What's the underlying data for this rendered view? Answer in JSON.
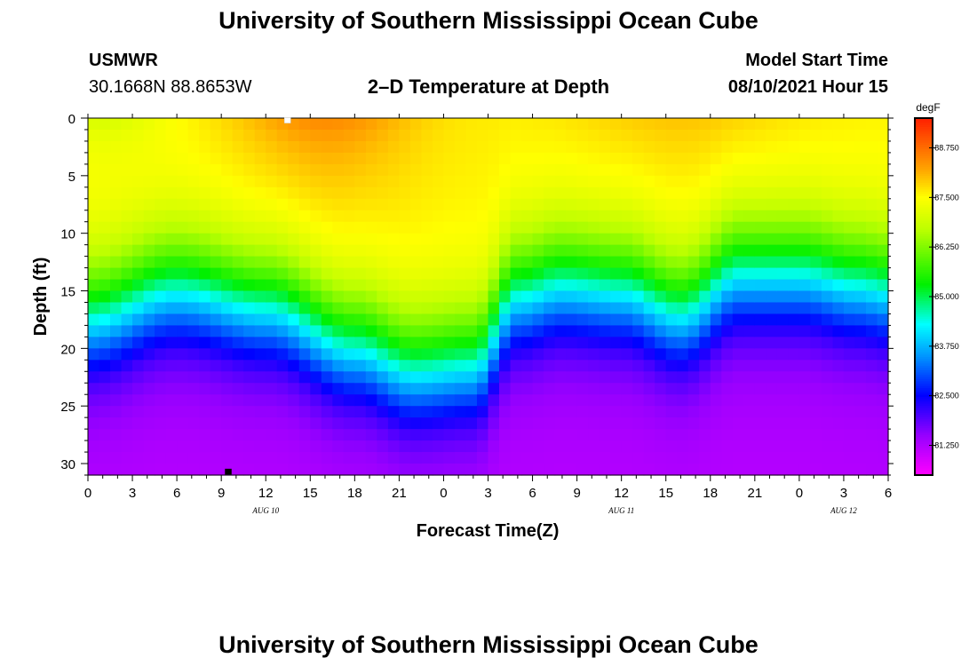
{
  "header": {
    "title": "University of Southern Mississippi Ocean Cube",
    "station": "USMWR",
    "coords": "30.1668N  88.8653W",
    "plot_title": "2–D Temperature at Depth",
    "model_label": "Model Start Time",
    "model_time": "08/10/2021 Hour 15"
  },
  "footer": {
    "title": "University of Southern Mississippi Ocean Cube"
  },
  "colors": {
    "magenta": "#ff00ff",
    "purple": "#8800ff",
    "blue": "#0000ff",
    "cyan": "#00ffff",
    "green": "#00ee00",
    "yellow": "#ffff00",
    "orange": "#ffaa00",
    "red": "#ff2200"
  },
  "chart_data": {
    "type": "heatmap",
    "title": "2–D Temperature at Depth",
    "xlabel": "Forecast Time(Z)",
    "ylabel": "Depth (ft)",
    "x_range_hours": [
      0,
      54
    ],
    "x_ticks": [
      "0",
      "3",
      "6",
      "9",
      "12",
      "15",
      "18",
      "21",
      "0",
      "3",
      "6",
      "9",
      "12",
      "15",
      "18",
      "21",
      "0",
      "3",
      "6"
    ],
    "date_labels": [
      {
        "hour": 12,
        "text": "AUG  10"
      },
      {
        "hour": 36,
        "text": "AUG  11"
      },
      {
        "hour": 51,
        "text": "AUG  12"
      }
    ],
    "y_range_ft": [
      0,
      31
    ],
    "y_ticks": [
      "0",
      "5",
      "10",
      "15",
      "20",
      "25",
      "30"
    ],
    "colorbar": {
      "unit": "degF",
      "range": [
        80.5,
        89.5
      ],
      "labels": [
        "88.750",
        "87.500",
        "86.250",
        "85.000",
        "83.750",
        "82.500",
        "81.250"
      ]
    },
    "markers": [
      {
        "hour": 13.5,
        "depth_ft": 0.2,
        "color": "#ffffff"
      },
      {
        "hour": 9.5,
        "depth_ft": 30.7,
        "color": "#000000"
      }
    ],
    "thermocline": {
      "depth_at_hours": [
        [
          0,
          17
        ],
        [
          6,
          14.5
        ],
        [
          12,
          16
        ],
        [
          18,
          19.5
        ],
        [
          22,
          21.5
        ],
        [
          26,
          21
        ],
        [
          29,
          15
        ],
        [
          32,
          14
        ],
        [
          36,
          14.5
        ],
        [
          40,
          16.5
        ],
        [
          44,
          13
        ],
        [
          48,
          13
        ],
        [
          52,
          14
        ],
        [
          54,
          14.5
        ]
      ],
      "surface_temp": 88.5,
      "upper_temp": 87.6,
      "bottom_temp": 81.2
    }
  }
}
